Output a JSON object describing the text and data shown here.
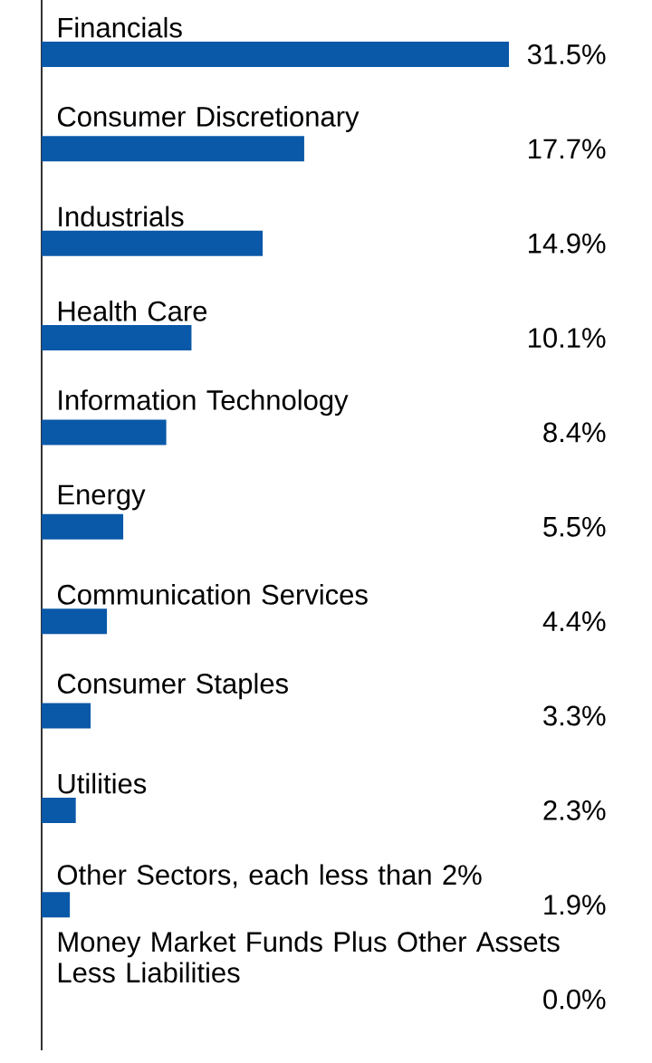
{
  "chart_data": {
    "type": "bar",
    "orientation": "horizontal",
    "color": "#0a58a8",
    "categories": [
      "Financials",
      "Consumer Discretionary",
      "Industrials",
      "Health Care",
      "Information Technology",
      "Energy",
      "Communication Services",
      "Consumer Staples",
      "Utilities",
      "Other Sectors, each less than 2%",
      "Money Market Funds Plus Other Assets Less Liabilities"
    ],
    "values": [
      31.5,
      17.7,
      14.9,
      10.1,
      8.4,
      5.5,
      4.4,
      3.3,
      2.3,
      1.9,
      0.0
    ],
    "value_labels": [
      "31.5%",
      "17.7%",
      "14.9%",
      "10.1%",
      "8.4%",
      "5.5%",
      "4.4%",
      "3.3%",
      "2.3%",
      "1.9%",
      "0.0%"
    ]
  }
}
